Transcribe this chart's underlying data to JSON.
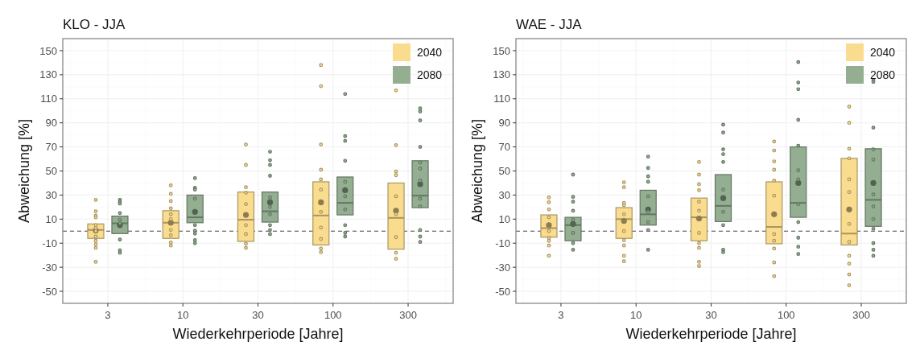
{
  "chart_data": [
    {
      "type": "box",
      "title": "KLO - JJA",
      "xlabel": "Wiederkehrperiode [Jahre]",
      "ylabel": "Abweichung [%]",
      "categories": [
        "3",
        "10",
        "30",
        "100",
        "300"
      ],
      "ylim": [
        -60,
        160
      ],
      "yticks": [
        -50,
        -30,
        -10,
        10,
        30,
        50,
        70,
        90,
        110,
        130,
        150
      ],
      "grid": true,
      "legend": "top right",
      "ref_lines": [
        {
          "axis": "y",
          "value": 0,
          "color": "#444444",
          "line_style": "dashed"
        }
      ],
      "series": [
        {
          "name": "2040",
          "color": "#fadc8f",
          "boxes": [
            {
              "low": -6,
              "q1": -6,
              "median": 1,
              "q3": 6,
              "high": 6,
              "mean": 0.5,
              "outliers": [
                26,
                16.5,
                13,
                11.5,
                5,
                2.5,
                0,
                -4.5,
                -8,
                -11,
                -14,
                -25.5
              ]
            },
            {
              "low": -6,
              "q1": -6,
              "median": 7,
              "q3": 17,
              "high": 17,
              "mean": 7,
              "outliers": [
                38,
                31,
                25,
                19,
                14,
                10,
                1,
                -3.5,
                -9.5,
                -12
              ]
            },
            {
              "low": -8.5,
              "q1": -8.5,
              "median": 9.5,
              "q3": 32.5,
              "high": 32.5,
              "mean": 13.5,
              "outliers": [
                72,
                55,
                36.5,
                32,
                22.5,
                5,
                -2.5,
                -10.5,
                -14
              ]
            },
            {
              "low": -11.5,
              "q1": -11.5,
              "median": 13,
              "q3": 41,
              "high": 41,
              "mean": 24,
              "outliers": [
                138,
                120.5,
                72,
                51,
                43,
                34.5,
                16,
                3,
                -6.5,
                -14.5,
                -17.5
              ]
            },
            {
              "low": -15,
              "q1": -15,
              "median": 11,
              "q3": 40,
              "high": 40,
              "mean": 17,
              "outliers": [
                117,
                71.5,
                49.5,
                46.5,
                29,
                14,
                -5,
                -18,
                -23
              ]
            }
          ]
        },
        {
          "name": "2080",
          "color": "#93ae91",
          "boxes": [
            {
              "low": -2,
              "q1": -2,
              "median": 6.5,
              "q3": 12.5,
              "high": 12.5,
              "mean": 5,
              "outliers": [
                26,
                24.5,
                23,
                15,
                9.5,
                6.5,
                -7,
                -16,
                -18
              ]
            },
            {
              "low": 7,
              "q1": 7,
              "median": 11.5,
              "q3": 30,
              "high": 30,
              "mean": 16,
              "outliers": [
                44,
                36,
                34.5,
                27,
                5,
                0.5,
                -2,
                -7.5,
                -10
              ]
            },
            {
              "low": 7.5,
              "q1": 7.5,
              "median": 16.5,
              "q3": 32.5,
              "high": 32.5,
              "mean": 24,
              "outliers": [
                66,
                59,
                55,
                46,
                28,
                20,
                14,
                5,
                1,
                -2.5
              ]
            },
            {
              "low": 13.5,
              "q1": 13.5,
              "median": 23.5,
              "q3": 45,
              "high": 45,
              "mean": 34,
              "outliers": [
                114,
                79,
                75,
                58.5,
                41,
                29,
                18,
                5,
                -1.5,
                -4.5
              ]
            },
            {
              "low": 19.5,
              "q1": 19.5,
              "median": 29.5,
              "q3": 58.5,
              "high": 58.5,
              "mean": 39,
              "outliers": [
                102,
                99.5,
                92,
                70,
                57,
                52,
                42,
                27,
                20.5,
                1,
                -4.5,
                -9
              ]
            }
          ]
        }
      ]
    },
    {
      "type": "box",
      "title": "WAE - JJA",
      "xlabel": "Wiederkehrperiode [Jahre]",
      "ylabel": "Abweichung [%]",
      "categories": [
        "3",
        "10",
        "30",
        "100",
        "300"
      ],
      "ylim": [
        -60,
        160
      ],
      "yticks": [
        -50,
        -30,
        -10,
        10,
        30,
        50,
        70,
        90,
        110,
        130,
        150
      ],
      "grid": true,
      "legend": "top right",
      "ref_lines": [
        {
          "axis": "y",
          "value": 0,
          "color": "#444444",
          "line_style": "dashed"
        }
      ],
      "series": [
        {
          "name": "2040",
          "color": "#fadc8f",
          "boxes": [
            {
              "low": -5,
              "q1": -5,
              "median": 2.5,
              "q3": 13.5,
              "high": 13.5,
              "mean": 5,
              "outliers": [
                28,
                24,
                18,
                11.5,
                0,
                -5.5,
                -8,
                -12,
                -20.5
              ]
            },
            {
              "low": -6,
              "q1": -6,
              "median": 10,
              "q3": 19.5,
              "high": 19.5,
              "mean": 8.5,
              "outliers": [
                40.5,
                36.5,
                23.5,
                21.5,
                14,
                0,
                -7.5,
                -12,
                -20.5,
                -25
              ]
            },
            {
              "low": -8,
              "q1": -8,
              "median": 11.5,
              "q3": 27.5,
              "high": 27.5,
              "mean": 10.5,
              "outliers": [
                57.5,
                47,
                39,
                34,
                24.5,
                17,
                -1.5,
                -10,
                -14,
                -25.5,
                -29
              ]
            },
            {
              "low": -10.5,
              "q1": -10.5,
              "median": 3.5,
              "q3": 41,
              "high": 41,
              "mean": 14,
              "outliers": [
                74.5,
                67,
                58,
                51,
                42,
                29.5,
                -2.5,
                -8,
                -14.5,
                -26,
                -37.5
              ]
            },
            {
              "low": -11.5,
              "q1": -11.5,
              "median": -2,
              "q3": 60.5,
              "high": 60.5,
              "mean": 18,
              "outliers": [
                103.5,
                90,
                68.5,
                60.5,
                43,
                32.5,
                6,
                -9,
                -20.5,
                -27,
                -36,
                -45
              ]
            }
          ]
        },
        {
          "name": "2080",
          "color": "#93ae91",
          "boxes": [
            {
              "low": -8,
              "q1": -8,
              "median": 5,
              "q3": 11.5,
              "high": 11.5,
              "mean": 6,
              "outliers": [
                47,
                28.5,
                24.5,
                17,
                9.5,
                -1.5,
                -10,
                -15.5
              ]
            },
            {
              "low": 5,
              "q1": 5,
              "median": 14,
              "q3": 34,
              "high": 34,
              "mean": 18,
              "outliers": [
                62,
                52.5,
                45.5,
                41,
                29,
                16,
                7.5,
                1,
                -15.5
              ]
            },
            {
              "low": 8,
              "q1": 8,
              "median": 21,
              "q3": 47,
              "high": 47,
              "mean": 27.5,
              "outliers": [
                88.5,
                82,
                68,
                64,
                57.5,
                34.5,
                16,
                5,
                -15.5,
                -17.5
              ]
            },
            {
              "low": 11.5,
              "q1": 11.5,
              "median": 23.5,
              "q3": 70,
              "high": 70,
              "mean": 40,
              "outliers": [
                140.5,
                123.5,
                118,
                92.5,
                71,
                50.5,
                43,
                22.5,
                7.5,
                -5.5,
                -13,
                -19
              ]
            },
            {
              "low": 4,
              "q1": 4,
              "median": 26,
              "q3": 68.5,
              "high": 68.5,
              "mean": 40,
              "outliers": [
                125.5,
                124,
                86,
                68,
                59.5,
                30.5,
                20.5,
                10,
                2,
                -10,
                -15.5,
                -20.5
              ]
            }
          ]
        }
      ]
    }
  ]
}
